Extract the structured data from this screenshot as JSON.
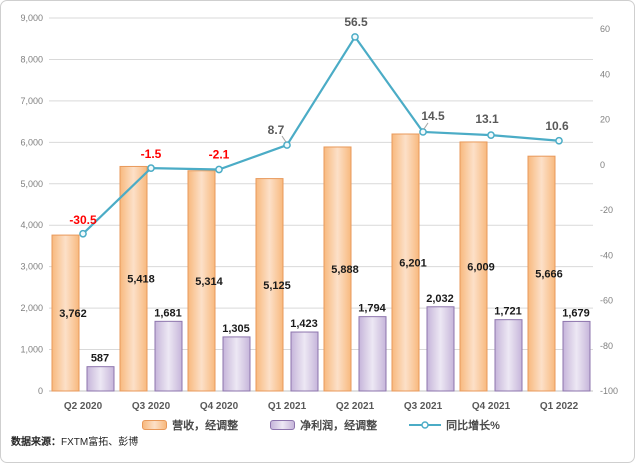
{
  "chart_data": {
    "type": "bar",
    "subtype": "combo-bar-line-dual-axis",
    "title": "",
    "categories": [
      "Q2 2020",
      "Q3 2020",
      "Q4 2020",
      "Q1 2021",
      "Q2 2021",
      "Q3 2021",
      "Q4 2021",
      "Q1 2022"
    ],
    "series": [
      {
        "id": "revenue",
        "name": "营收，经调整",
        "type": "bar",
        "axis": "left",
        "values": [
          3762,
          5418,
          5314,
          5125,
          5888,
          6201,
          6009,
          5666
        ],
        "labels": [
          "3,762",
          "5,418",
          "5,314",
          "5,125",
          "5,888",
          "6,201",
          "6,009",
          "5,666"
        ]
      },
      {
        "id": "net_profit",
        "name": "净利润，经调整",
        "type": "bar",
        "axis": "left",
        "values": [
          587,
          1681,
          1305,
          1423,
          1794,
          2032,
          1721,
          1679
        ],
        "labels": [
          "587",
          "1,681",
          "1,305",
          "1,423",
          "1,794",
          "2,032",
          "1,721",
          "1,679"
        ]
      },
      {
        "id": "yoy_growth",
        "name": "同比增长%",
        "type": "line",
        "axis": "right",
        "values": [
          -30.5,
          -1.5,
          -2.1,
          8.7,
          56.5,
          14.5,
          13.1,
          10.6
        ],
        "labels": [
          "-30.5",
          "-1.5",
          "-2.1",
          "8.7",
          "56.5",
          "14.5",
          "13.1",
          "10.6"
        ],
        "label_colors": [
          "#FF0000",
          "#FF0000",
          "#FF0000",
          "#595959",
          "#595959",
          "#595959",
          "#595959",
          "#595959"
        ],
        "label_offsets": [
          [
            0,
            -10
          ],
          [
            0,
            -10
          ],
          [
            0,
            -11
          ],
          [
            -11,
            -11
          ],
          [
            1,
            -11
          ],
          [
            10,
            -12
          ],
          [
            -4,
            -12
          ],
          [
            -2,
            -11
          ]
        ],
        "leader_line_indices": [
          3,
          5
        ]
      }
    ],
    "left_axis": {
      "min": 0,
      "max": 9000,
      "step": 1000,
      "tick_labels": [
        "0",
        "1,000",
        "2,000",
        "3,000",
        "4,000",
        "5,000",
        "6,000",
        "7,000",
        "8,000",
        "9,000"
      ]
    },
    "right_axis": {
      "min": -100,
      "max": 60,
      "step": 20,
      "tick_labels": [
        "-100",
        "-80",
        "-60",
        "-40",
        "-20",
        "0",
        "20",
        "40",
        "60"
      ]
    },
    "grid": true,
    "legend_position": "bottom",
    "colors": {
      "revenue": {
        "edge": "#F8B97E",
        "center": "#FCE0C8",
        "border": "#E8995B"
      },
      "net_profit": {
        "edge": "#C6B5DA",
        "center": "#EDE8F4",
        "border": "#8D75AD"
      },
      "yoy_growth": {
        "line": "#4BACC6",
        "marker_fill": "#F2FAFC"
      },
      "grid_line": "#D9D9D9",
      "baseline": "#C3C3C3",
      "axis_tick_text": "#808080",
      "x_label_text": "#595959",
      "bar_label_text": "#1A1A1A",
      "leader_line": "#A6A6A6"
    }
  },
  "legend": {
    "items": [
      {
        "id": "revenue",
        "label": "营收，经调整"
      },
      {
        "id": "net_profit",
        "label": "净利润，经调整"
      },
      {
        "id": "yoy_growth",
        "label": "同比增长%"
      }
    ]
  },
  "source": {
    "prefix": "数据来源：",
    "text": "FXTM富拓、彭博"
  }
}
